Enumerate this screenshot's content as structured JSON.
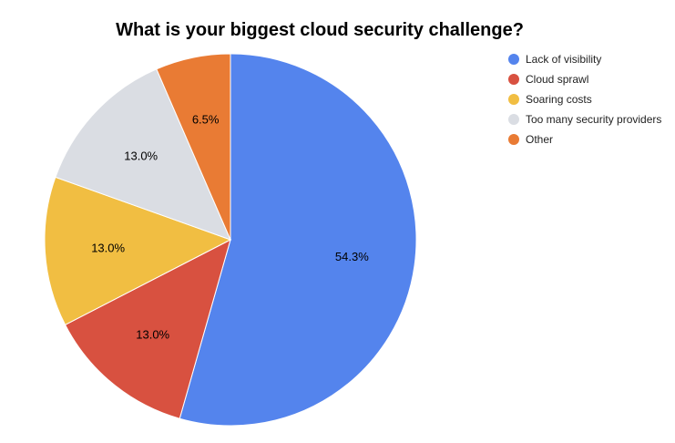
{
  "chart_data": {
    "type": "pie",
    "title": "What is your biggest cloud security challenge?",
    "legend_position": "right",
    "start_angle_deg": 0,
    "direction": "clockwise",
    "slices": [
      {
        "label": "Lack of visibility",
        "value": 54.3,
        "display": "54.3%",
        "color": "#5484ED"
      },
      {
        "label": "Cloud sprawl",
        "value": 13.0,
        "display": "13.0%",
        "color": "#D85140"
      },
      {
        "label": "Soaring costs",
        "value": 13.0,
        "display": "13.0%",
        "color": "#F1BE42"
      },
      {
        "label": "Too many security providers",
        "value": 13.0,
        "display": "13.0%",
        "color": "#DADDE3"
      },
      {
        "label": "Other",
        "value": 6.5,
        "display": "6.5%",
        "color": "#E97B34"
      }
    ]
  }
}
